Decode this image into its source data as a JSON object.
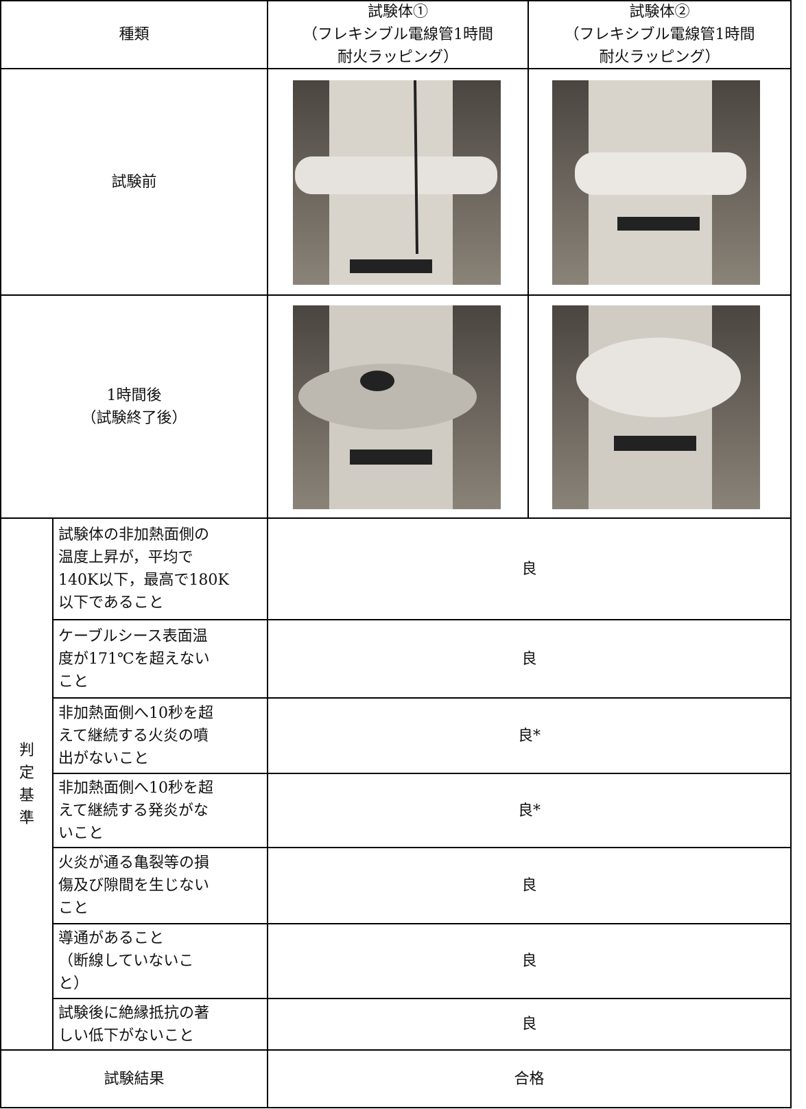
{
  "table": {
    "header": {
      "label": "種類",
      "specimens": [
        {
          "lines": [
            "試験体①",
            "（フレキシブル電線管1時間",
            "耐火ラッピング）"
          ]
        },
        {
          "lines": [
            "試験体②",
            "（フレキシブル電線管1時間",
            "耐火ラッピング）"
          ]
        }
      ]
    },
    "rows": [
      {
        "label_lines": [
          "試験前"
        ]
      },
      {
        "label_lines": [
          "1時間後",
          "（試験終了後）"
        ]
      }
    ],
    "criteria": {
      "label_lines": [
        "判",
        "定",
        "基",
        "準"
      ],
      "items": [
        {
          "lines": [
            "試験体の非加熱面側の",
            "温度上昇が，平均で",
            "140K以下，最高で180K",
            "以下であること"
          ],
          "result": "良"
        },
        {
          "lines": [
            "ケーブルシース表面温",
            "度が171℃を超えない",
            "こと"
          ],
          "result": "良"
        },
        {
          "lines": [
            "非加熱面側へ10秒を超",
            "えて継続する火炎の噴",
            "出がないこと"
          ],
          "result": "良*"
        },
        {
          "lines": [
            "非加熱面側へ10秒を超",
            "えて継続する発炎がな",
            "いこと"
          ],
          "result": "良*"
        },
        {
          "lines": [
            "火炎が通る亀裂等の損",
            "傷及び隙間を生じない",
            "こと"
          ],
          "result": "良"
        },
        {
          "lines": [
            "導通があること",
            "（断線していないこ",
            "と）"
          ],
          "result": "良"
        },
        {
          "lines": [
            "試験後に絶縁抵抗の著",
            "しい低下がないこと"
          ],
          "result": "良"
        }
      ]
    },
    "summary": {
      "label": "試験結果",
      "result": "合格"
    }
  }
}
